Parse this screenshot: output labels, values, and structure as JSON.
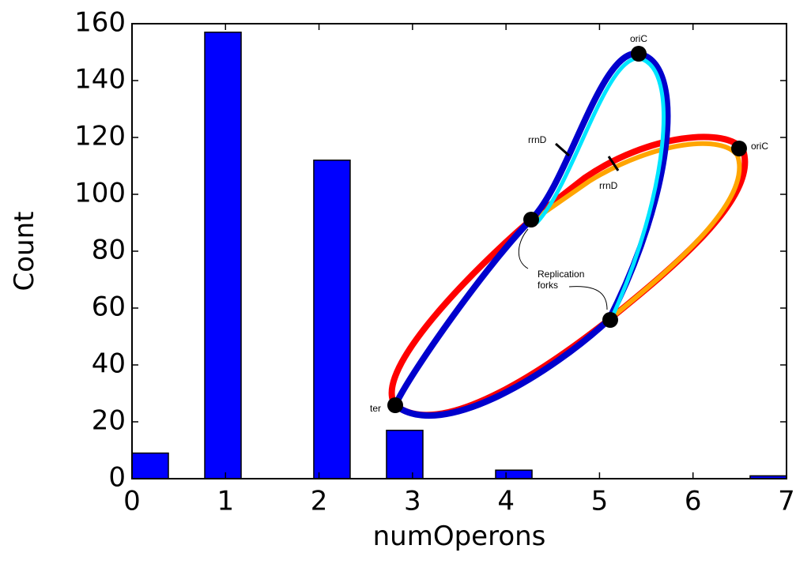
{
  "chart_data": {
    "type": "histogram",
    "xlabel": "numOperons",
    "ylabel": "Count",
    "bins": [
      0,
      0.389,
      0.778,
      1.167,
      1.556,
      1.944,
      2.333,
      2.722,
      3.111,
      3.5,
      3.889,
      4.278,
      4.667,
      5.056,
      5.444,
      5.833,
      6.222,
      6.611,
      7
    ],
    "values": [
      9,
      0,
      157,
      0,
      0,
      112,
      0,
      17,
      0,
      0,
      3,
      0,
      0,
      0,
      0,
      0,
      0,
      1
    ],
    "color": "#0000ff",
    "xlim": [
      0,
      7
    ],
    "xticks": [
      0,
      1,
      2,
      3,
      4,
      5,
      6,
      7
    ],
    "ylim": [
      0,
      160
    ],
    "yticks": [
      0,
      20,
      40,
      60,
      80,
      100,
      120,
      140,
      160
    ],
    "annotations": [
      "oriC",
      "oriC",
      "rrnD",
      "rrnD",
      "Replication",
      "forks",
      "ter"
    ]
  }
}
